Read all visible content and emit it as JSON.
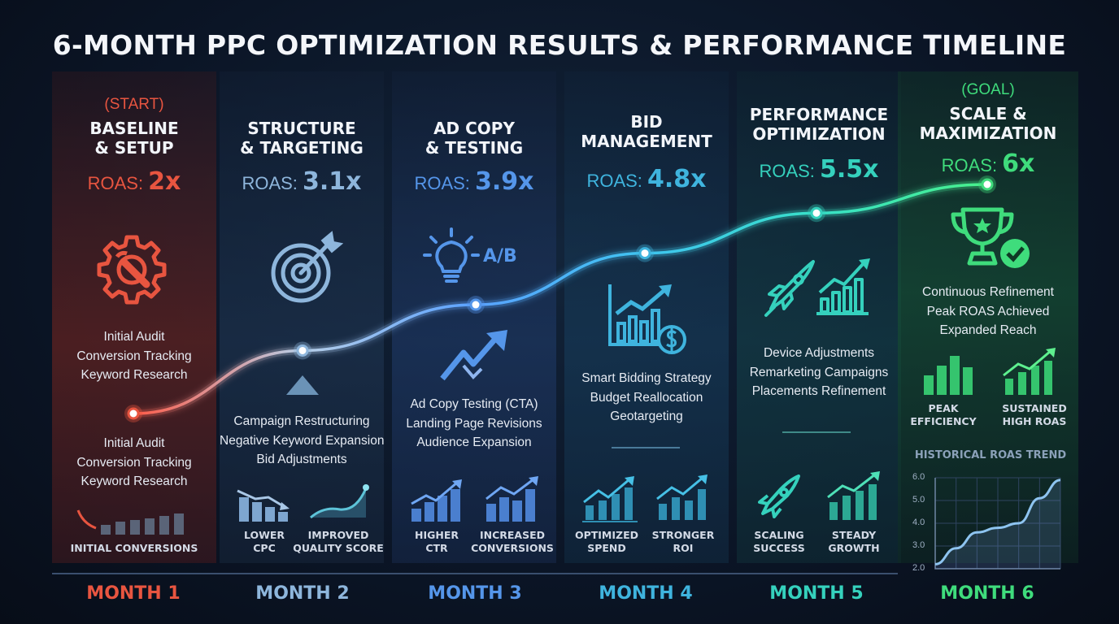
{
  "title": "6-MONTH PPC OPTIMIZATION RESULTS & PERFORMANCE TIMELINE",
  "colors": [
    "#e85540",
    "#8eb6dc",
    "#5596ea",
    "#3fb4de",
    "#35d1bd",
    "#3fdc7c"
  ],
  "months": [
    {
      "tag": "(START)",
      "heading": [
        "BASELINE",
        "& SETUP"
      ],
      "roas_prefix": "ROAS: ",
      "roas_value": "2x",
      "icon": "wrench-gear-icon",
      "desc_top": [
        "Initial Audit",
        "Conversion Tracking",
        "Keyword Research"
      ],
      "desc_bottom": [
        "Initial Audit",
        "Conversion Tracking",
        "Keyword Research"
      ],
      "mini": [
        {
          "icon": "initial-conversions-bar-icon",
          "label": [
            "INITIAL CONVERSIONS"
          ]
        }
      ],
      "month_label": "MONTH 1"
    },
    {
      "heading": [
        "STRUCTURE",
        "& TARGETING"
      ],
      "roas_prefix": "ROAS: ",
      "roas_value": "3.1x",
      "icon": "target-arrow-icon",
      "desc_bottom": [
        "Campaign Restructuring",
        "Negative Keyword Expansion",
        "Bid Adjustments"
      ],
      "mini": [
        {
          "icon": "lower-cpc-chart-icon",
          "label": [
            "LOWER",
            "CPC"
          ]
        },
        {
          "icon": "quality-score-curve-icon",
          "label": [
            "IMPROVED",
            "QUALITY SCORE"
          ]
        }
      ],
      "month_label": "MONTH 2"
    },
    {
      "heading": [
        "AD COPY",
        "& TESTING"
      ],
      "roas_prefix": "ROAS: ",
      "roas_value": "3.9x",
      "icon": "lightbulb-icon",
      "icon_text": "A/B",
      "desc_bottom": [
        "Ad Copy Testing (CTA)",
        "Landing Page Revisions",
        "Audience Expansion"
      ],
      "mini": [
        {
          "icon": "higher-ctr-chart-icon",
          "label": [
            "HIGHER",
            "CTR"
          ]
        },
        {
          "icon": "increased-conversions-chart-icon",
          "label": [
            "INCREASED",
            "CONVERSIONS"
          ]
        }
      ],
      "month_label": "MONTH 3"
    },
    {
      "heading": [
        "BID",
        "MANAGEMENT"
      ],
      "roas_prefix": "ROAS: ",
      "roas_value": "4.8x",
      "icon": "bar-chart-dollar-icon",
      "desc_top": [
        "Smart Bidding Strategy",
        "Budget Reallocation",
        "Geotargeting"
      ],
      "mini": [
        {
          "icon": "optimized-spend-chart-icon",
          "label": [
            "OPTIMIZED",
            "SPEND"
          ]
        },
        {
          "icon": "stronger-roi-chart-icon",
          "label": [
            "STRONGER",
            "ROI"
          ]
        }
      ],
      "month_label": "MONTH 4"
    },
    {
      "heading": [
        "PERFORMANCE",
        "OPTIMIZATION"
      ],
      "roas_prefix": "ROAS: ",
      "roas_value": "5.5x",
      "icon": "rocket-chart-icon",
      "desc_top": [
        "Device Adjustments",
        "Remarketing Campaigns",
        "Placements Refinement"
      ],
      "mini": [
        {
          "icon": "scaling-rocket-icon",
          "label": [
            "SCALING",
            "SUCCESS"
          ]
        },
        {
          "icon": "steady-growth-chart-icon",
          "label": [
            "STEADY",
            "GROWTH"
          ]
        }
      ],
      "month_label": "MONTH 5"
    },
    {
      "tag": "(GOAL)",
      "heading": [
        "SCALE &",
        "MAXIMIZATION"
      ],
      "roas_prefix": "ROAS: ",
      "roas_value": "6x",
      "icon": "trophy-check-icon",
      "desc_top": [
        "Continuous Refinement",
        "Peak ROAS Achieved",
        "Expanded Reach"
      ],
      "mini": [
        {
          "icon": "peak-efficiency-bars-icon",
          "label": [
            "PEAK",
            "EFFICIENCY"
          ]
        },
        {
          "icon": "sustained-roas-chart-icon",
          "label": [
            "SUSTAINED",
            "HIGH ROAS"
          ]
        }
      ],
      "month_label": "MONTH 6"
    }
  ],
  "chart_data": {
    "type": "line",
    "title": "HISTORICAL ROAS TREND",
    "x": [
      1,
      2,
      3,
      4,
      5,
      6
    ],
    "y": [
      2,
      3.1,
      3.9,
      4.8,
      5.5,
      6
    ],
    "ylim": [
      2.0,
      6.0
    ],
    "yticks": [
      "6.0",
      "5.0",
      "4.0",
      "3.0",
      "2.0"
    ],
    "grid": true,
    "inset": {
      "title": "HISTORICAL ROAS TREND",
      "x": [
        0,
        1,
        2,
        3,
        4,
        5,
        6
      ],
      "y": [
        2.2,
        2.9,
        3.6,
        3.8,
        4.0,
        5.1,
        5.9
      ],
      "ylim": [
        2.0,
        6.0
      ]
    }
  }
}
